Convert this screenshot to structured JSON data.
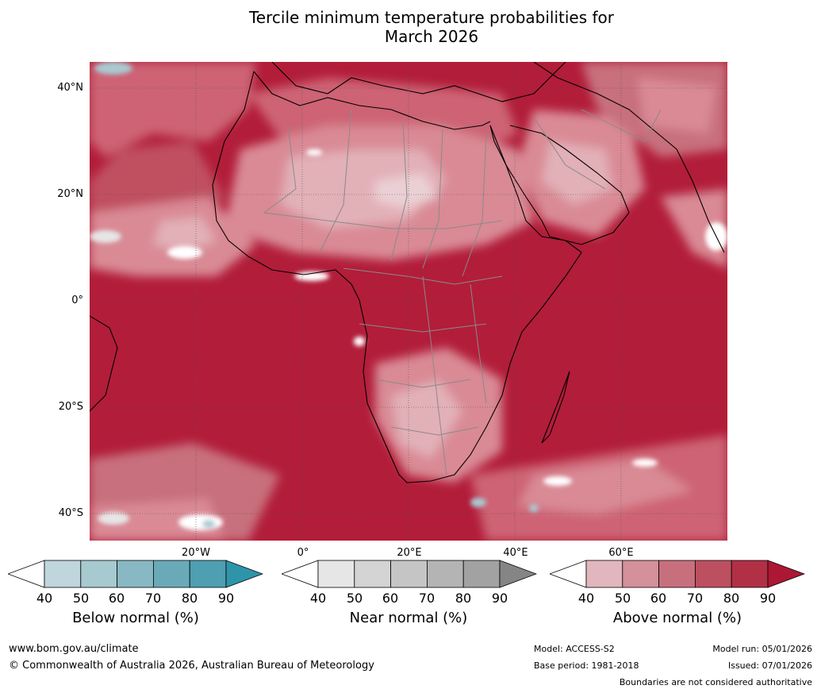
{
  "title_line1": "Tercile minimum temperature probabilities for",
  "title_line2": "March 2026",
  "map": {
    "lat_labels": [
      "40°N",
      "20°N",
      "0°",
      "20°S",
      "40°S"
    ],
    "lon_labels": [
      "20°W",
      "0°",
      "20°E",
      "40°E",
      "60°E"
    ],
    "colors": {
      "ocean_dominant": "#b21d3a",
      "above_80": "#be3a52",
      "above_70": "#cd6475",
      "above_60": "#d98a95",
      "above_50": "#e2b0b7",
      "white": "#ffffff",
      "near_normal": "#dcdcdc",
      "below_normal": "#a8c9d1"
    }
  },
  "legends": [
    {
      "label": "Below normal (%)",
      "ticks": [
        "40",
        "50",
        "60",
        "70",
        "80",
        "90"
      ],
      "colors": [
        "#ffffff",
        "#bfd6dc",
        "#a7c9d0",
        "#88b8c3",
        "#6aaab8",
        "#4d9fb1",
        "#2e94aa"
      ]
    },
    {
      "label": "Near normal (%)",
      "ticks": [
        "40",
        "50",
        "60",
        "70",
        "80",
        "90"
      ],
      "colors": [
        "#ffffff",
        "#e6e6e6",
        "#d4d4d4",
        "#c5c5c5",
        "#b4b4b4",
        "#a2a2a2",
        "#858585"
      ]
    },
    {
      "label": "Above normal (%)",
      "ticks": [
        "40",
        "50",
        "60",
        "70",
        "80",
        "90"
      ],
      "colors": [
        "#ffffff",
        "#e2b6bd",
        "#d4909b",
        "#c86f7d",
        "#bc4f60",
        "#b13046",
        "#ac1834"
      ]
    }
  ],
  "footer": {
    "url": "www.bom.gov.au/climate",
    "copyright": "© Commonwealth of Australia 2026, Australian Bureau of Meteorology",
    "model": "Model: ACCESS-S2",
    "base_period": "Base period: 1981-2018",
    "model_run": "Model run: 05/01/2026",
    "issued": "Issued: 07/01/2026",
    "boundaries": "Boundaries are not considered authoritative"
  }
}
